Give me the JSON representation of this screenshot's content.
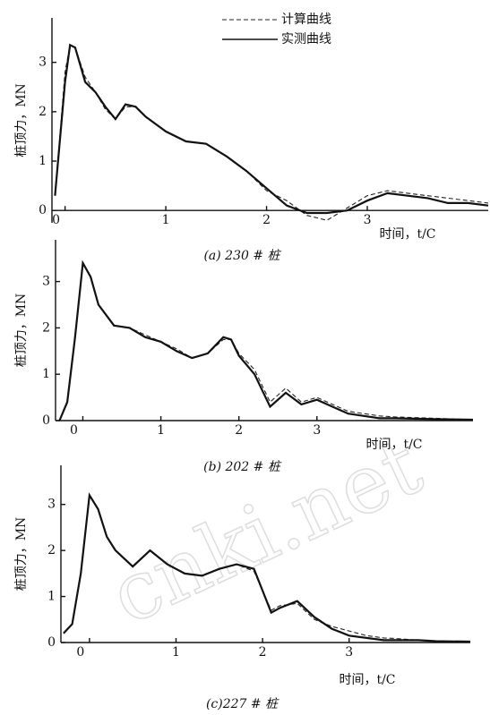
{
  "watermark": "cnki.net",
  "chart_data": [
    {
      "type": "line",
      "caption": "(a) 230 # 桩",
      "ylabel": "桩顶力，MN",
      "xlabel": "时间，t/C",
      "xlim": [
        -0.13,
        4.2
      ],
      "ylim": [
        -0.25,
        3.9
      ],
      "xticks": [
        0,
        1,
        2,
        3
      ],
      "yticks": [
        0,
        1,
        2,
        3
      ],
      "x": [
        -0.1,
        0,
        0.05,
        0.1,
        0.2,
        0.3,
        0.4,
        0.5,
        0.6,
        0.7,
        0.8,
        0.9,
        1.0,
        1.2,
        1.4,
        1.6,
        1.8,
        2.0,
        2.2,
        2.4,
        2.6,
        2.8,
        3.0,
        3.2,
        3.4,
        3.6,
        3.8,
        4.0,
        4.2
      ],
      "series": [
        {
          "name": "计算曲线",
          "color": "#222",
          "dashed": true,
          "values": [
            0.3,
            2.8,
            3.35,
            3.3,
            2.7,
            2.4,
            2.05,
            1.85,
            2.1,
            2.1,
            1.9,
            1.75,
            1.6,
            1.4,
            1.35,
            1.1,
            0.8,
            0.4,
            0.2,
            -0.1,
            -0.2,
            0.05,
            0.3,
            0.4,
            0.35,
            0.3,
            0.25,
            0.2,
            0.15
          ]
        },
        {
          "name": "实测曲线",
          "color": "#111",
          "dashed": false,
          "values": [
            0.3,
            2.6,
            3.35,
            3.3,
            2.6,
            2.4,
            2.1,
            1.85,
            2.15,
            2.1,
            1.9,
            1.75,
            1.6,
            1.4,
            1.35,
            1.1,
            0.8,
            0.45,
            0.1,
            -0.05,
            -0.05,
            0.0,
            0.2,
            0.35,
            0.3,
            0.25,
            0.15,
            0.15,
            0.1
          ]
        }
      ]
    },
    {
      "type": "line",
      "caption": "(b) 202 # 桩",
      "ylabel": "桩顶力，MN",
      "xlabel": "时间，t/C",
      "xlim": [
        -0.35,
        5.0
      ],
      "ylim": [
        0,
        3.9
      ],
      "xticks": [
        0,
        1,
        2,
        3
      ],
      "yticks": [
        0,
        1,
        2,
        3
      ],
      "x": [
        -0.3,
        -0.2,
        -0.1,
        0,
        0.1,
        0.2,
        0.4,
        0.6,
        0.8,
        1.0,
        1.2,
        1.4,
        1.6,
        1.8,
        1.9,
        2.0,
        2.2,
        2.4,
        2.6,
        2.8,
        3.0,
        3.2,
        3.4,
        3.6,
        3.8,
        4.0,
        4.5,
        5.0
      ],
      "series": [
        {
          "color": "#222",
          "dashed": true,
          "values": [
            0,
            0.4,
            1.8,
            3.4,
            3.1,
            2.5,
            2.05,
            2.0,
            1.85,
            1.7,
            1.55,
            1.35,
            1.45,
            1.75,
            1.75,
            1.45,
            1.1,
            0.4,
            0.7,
            0.4,
            0.5,
            0.35,
            0.2,
            0.15,
            0.1,
            0.08,
            0.05,
            0.02
          ]
        },
        {
          "color": "#111",
          "dashed": false,
          "values": [
            0,
            0.4,
            1.8,
            3.4,
            3.1,
            2.5,
            2.05,
            2.0,
            1.8,
            1.7,
            1.5,
            1.35,
            1.45,
            1.8,
            1.75,
            1.4,
            1.0,
            0.3,
            0.6,
            0.35,
            0.45,
            0.3,
            0.15,
            0.1,
            0.05,
            0.05,
            0.03,
            0.02
          ]
        }
      ]
    },
    {
      "type": "line",
      "caption": "(c)227 # 桩",
      "ylabel": "桩顶力，MN",
      "xlabel": "时间，t/C",
      "xlim": [
        -0.33,
        4.4
      ],
      "ylim": [
        0,
        3.85
      ],
      "xticks": [
        0,
        1,
        2,
        3
      ],
      "yticks": [
        0,
        1,
        2,
        3
      ],
      "x": [
        -0.3,
        -0.2,
        -0.1,
        0,
        0.1,
        0.2,
        0.3,
        0.5,
        0.7,
        0.9,
        1.1,
        1.3,
        1.5,
        1.7,
        1.9,
        2.1,
        2.2,
        2.4,
        2.6,
        2.8,
        3.0,
        3.2,
        3.4,
        3.6,
        3.8,
        4.0,
        4.4
      ],
      "series": [
        {
          "color": "#222",
          "dashed": true,
          "values": [
            0.2,
            0.4,
            1.5,
            3.2,
            2.9,
            2.3,
            2.0,
            1.65,
            2.0,
            1.7,
            1.5,
            1.45,
            1.6,
            1.7,
            1.55,
            0.7,
            0.8,
            0.85,
            0.5,
            0.35,
            0.25,
            0.15,
            0.1,
            0.08,
            0.05,
            0.03,
            0.02
          ]
        },
        {
          "color": "#111",
          "dashed": false,
          "values": [
            0.2,
            0.4,
            1.5,
            3.2,
            2.9,
            2.3,
            2.0,
            1.65,
            2.0,
            1.7,
            1.5,
            1.45,
            1.6,
            1.7,
            1.6,
            0.65,
            0.75,
            0.9,
            0.55,
            0.3,
            0.15,
            0.1,
            0.05,
            0.05,
            0.05,
            0.03,
            0.02
          ]
        }
      ]
    }
  ]
}
